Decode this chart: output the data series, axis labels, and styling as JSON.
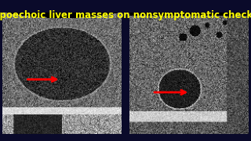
{
  "title": "Hypoechoic liver masses on nonsymptomatic checkup",
  "title_color": "#FFFF00",
  "title_fontsize": 8.5,
  "background_color": "#0a0a2a",
  "fig_width": 3.2,
  "fig_height": 1.8,
  "dpi": 100,
  "arrow_color": "#FF0000"
}
